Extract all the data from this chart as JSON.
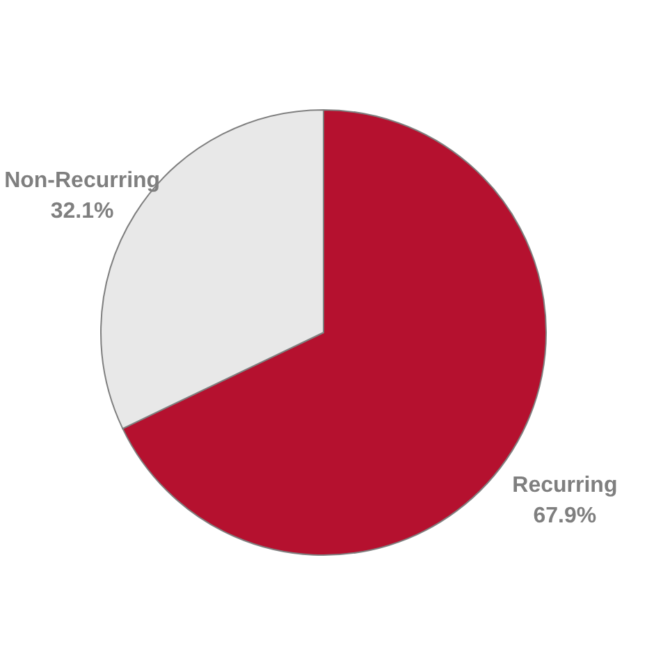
{
  "chart_data": {
    "type": "pie",
    "categories": [
      "Recurring",
      "Non-Recurring"
    ],
    "values": [
      67.9,
      32.1
    ],
    "value_labels": [
      "67.9%",
      "32.1%"
    ],
    "colors": [
      "#b5112f",
      "#e8e8e8"
    ]
  }
}
